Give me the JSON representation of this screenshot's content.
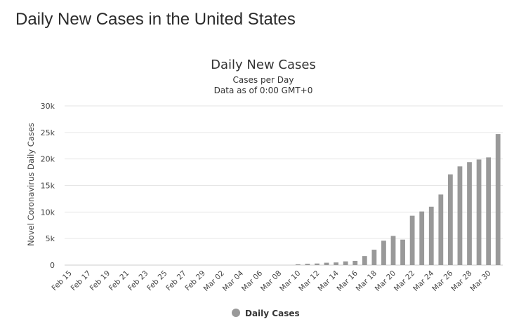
{
  "page": {
    "heading": "Daily New Cases in the United States"
  },
  "chart_data": {
    "type": "bar",
    "title": "Daily New Cases",
    "subtitle_lines": [
      "Cases per Day",
      "Data as of 0:00 GMT+0"
    ],
    "xlabel": "",
    "ylabel": "Novel Coronavirus Daily Cases",
    "ylim": [
      0,
      30000
    ],
    "y_ticks": [
      0,
      5000,
      10000,
      15000,
      20000,
      25000,
      30000
    ],
    "y_tick_labels": [
      "0",
      "5k",
      "10k",
      "15k",
      "20k",
      "25k",
      "30k"
    ],
    "grid": true,
    "legend_position": "bottom",
    "series_color": "#999999",
    "categories": [
      "Feb 15",
      "Feb 16",
      "Feb 17",
      "Feb 18",
      "Feb 19",
      "Feb 20",
      "Feb 21",
      "Feb 22",
      "Feb 23",
      "Feb 24",
      "Feb 25",
      "Feb 26",
      "Feb 27",
      "Feb 28",
      "Feb 29",
      "Mar 01",
      "Mar 02",
      "Mar 03",
      "Mar 04",
      "Mar 05",
      "Mar 06",
      "Mar 07",
      "Mar 08",
      "Mar 09",
      "Mar 10",
      "Mar 11",
      "Mar 12",
      "Mar 13",
      "Mar 14",
      "Mar 15",
      "Mar 16",
      "Mar 17",
      "Mar 18",
      "Mar 19",
      "Mar 20",
      "Mar 21",
      "Mar 22",
      "Mar 23",
      "Mar 24",
      "Mar 25",
      "Mar 26",
      "Mar 27",
      "Mar 28",
      "Mar 29",
      "Mar 30",
      "Mar 31"
    ],
    "x_tick_labels": [
      "Feb 15",
      "Feb 17",
      "Feb 19",
      "Feb 21",
      "Feb 23",
      "Feb 25",
      "Feb 27",
      "Feb 29",
      "Mar 02",
      "Mar 04",
      "Mar 06",
      "Mar 08",
      "Mar 10",
      "Mar 12",
      "Mar 14",
      "Mar 16",
      "Mar 18",
      "Mar 20",
      "Mar 22",
      "Mar 24",
      "Mar 26",
      "Mar 28",
      "Mar 30"
    ],
    "series": [
      {
        "name": "Daily Cases",
        "values": [
          0,
          0,
          0,
          0,
          0,
          0,
          0,
          0,
          0,
          0,
          0,
          0,
          0,
          0,
          0,
          0,
          0,
          0,
          0,
          0,
          0,
          0,
          0,
          0,
          150,
          250,
          300,
          450,
          500,
          700,
          800,
          1700,
          2900,
          4600,
          5500,
          4800,
          9300,
          10100,
          11000,
          13300,
          17100,
          18600,
          19400,
          19900,
          20300,
          24700
        ]
      }
    ]
  }
}
